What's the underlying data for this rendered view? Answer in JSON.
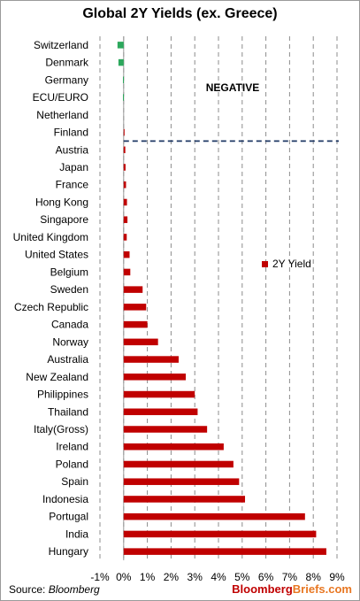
{
  "chart_data": {
    "type": "bar",
    "orientation": "horizontal",
    "title": "Global 2Y Yields (ex. Greece)",
    "xlabel": "",
    "ylabel": "",
    "xlim": [
      -1,
      9
    ],
    "tick_values": [
      -1,
      0,
      1,
      2,
      3,
      4,
      5,
      6,
      7,
      8,
      9
    ],
    "tick_labels": [
      "-1%",
      "0%",
      "1%",
      "2%",
      "3%",
      "4%",
      "5%",
      "6%",
      "7%",
      "8%",
      "9%"
    ],
    "grid": "vertical dashed",
    "legend_position": "right-middle",
    "categories": [
      "Switzerland",
      "Denmark",
      "Germany",
      "ECU/EURO",
      "Netherland",
      "Finland",
      "Austria",
      "Japan",
      "France",
      "Hong Kong",
      "Singapore",
      "United Kingdom",
      "United States",
      "Belgium",
      "Sweden",
      "Czech Republic",
      "Canada",
      "Norway",
      "Australia",
      "New Zealand",
      "Philippines",
      "Thailand",
      "Italy(Gross)",
      "Ireland",
      "Poland",
      "Spain",
      "Indonesia",
      "Portugal",
      "India",
      "Hungary"
    ],
    "series": [
      {
        "name": "2Y Yield",
        "values": [
          -0.26,
          -0.22,
          -0.03,
          -0.03,
          0.0,
          0.01,
          0.07,
          0.08,
          0.1,
          0.14,
          0.16,
          0.13,
          0.25,
          0.28,
          0.8,
          0.95,
          1.0,
          1.45,
          2.32,
          2.62,
          3.0,
          3.12,
          3.52,
          4.22,
          4.63,
          4.87,
          5.12,
          7.65,
          8.12,
          8.55
        ]
      }
    ],
    "positive_color": "#c00000",
    "negative_color": "#2ca85c",
    "annotation": "NEGATIVE",
    "annotation_line_color": "#1f3864",
    "annotation_line_after": "Finland"
  },
  "footer": {
    "source_prefix": "Source:",
    "source_name": "Bloomberg",
    "brand_part1": "Bloomberg",
    "brand_part2": "Briefs.com",
    "brand_color1": "#c00000",
    "brand_color2": "#e87722"
  }
}
